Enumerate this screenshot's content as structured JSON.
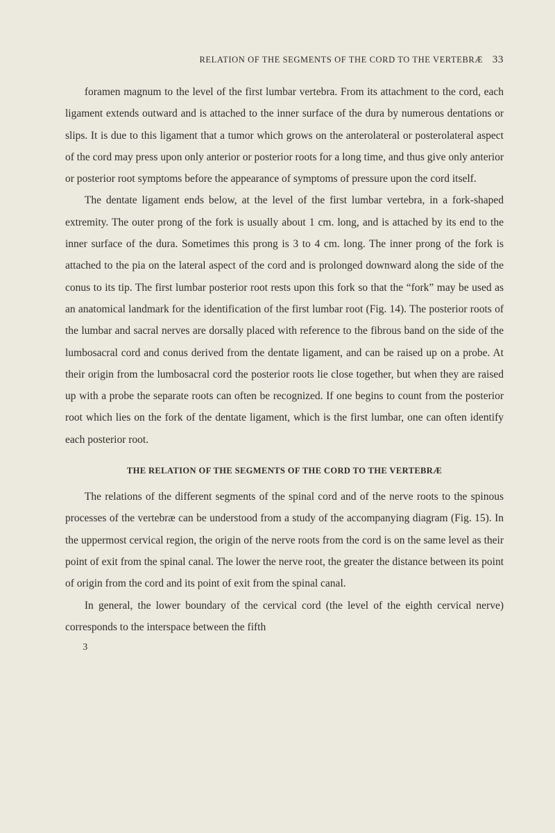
{
  "colors": {
    "background": "#eceade",
    "text": "#2b2b28"
  },
  "typography": {
    "body_font_size_pt": 11.5,
    "body_line_height": 2.02,
    "running_head_font_size_pt": 9.5,
    "section_title_font_size_pt": 9.5,
    "font_family": "serif"
  },
  "running_head": {
    "text": "RELATION OF THE SEGMENTS OF THE CORD TO THE VERTEBRÆ",
    "page_number": "33"
  },
  "paragraphs": [
    "foramen magnum to the level of the first lumbar vertebra. From its attachment to the cord, each ligament extends outward and is attached to the inner surface of the dura by numerous dentations or slips. It is due to this ligament that a tumor which grows on the anterolateral or pos­terolateral aspect of the cord may press upon only anterior or posterior roots for a long time, and thus give only anterior or posterior root symp­toms before the appearance of symptoms of pressure upon the cord itself.",
    "The dentate ligament ends below, at the level of the first lumbar vertebra, in a fork-shaped extremity. The outer prong of the fork is usually about 1 cm. long, and is attached by its end to the inner surface of the dura. Sometimes this prong is 3 to 4 cm. long. The inner prong of the fork is attached to the pia on the lateral aspect of the cord and is prolonged downward along the side of the conus to its tip. The first lumbar posterior root rests upon this fork so that the “fork” may be used as an anatomical landmark for the identification of the first lumbar root (Fig. 14). The posterior roots of the lumbar and sacral nerves are dorsally placed with reference to the fibrous band on the side of the lumbo­sacral cord and conus derived from the dentate ligament, and can be raised up on a probe. At their origin from the lumbosacral cord the posterior roots lie close together, but when they are raised up with a probe the separate roots can often be recognized. If one begins to count from the posterior root which lies on the fork of the dentate ligament, which is the first lumbar, one can often identify each posterior root."
  ],
  "section_title": "THE RELATION OF THE SEGMENTS OF THE CORD TO THE VERTEBRÆ",
  "paragraphs_after": [
    "The relations of the different segments of the spinal cord and of the nerve roots to the spinous processes of the vertebræ can be understood from a study of the accompanying diagram (Fig. 15). In the uppermost cervical region, the origin of the nerve roots from the cord is on the same level as their point of exit from the spinal canal. The lower the nerve root, the greater the distance between its point of origin from the cord and its point of exit from the spinal canal.",
    "In general, the lower boundary of the cervical cord (the level of the eighth cervical nerve) corresponds to the interspace between the fifth"
  ],
  "signature_mark": "3"
}
